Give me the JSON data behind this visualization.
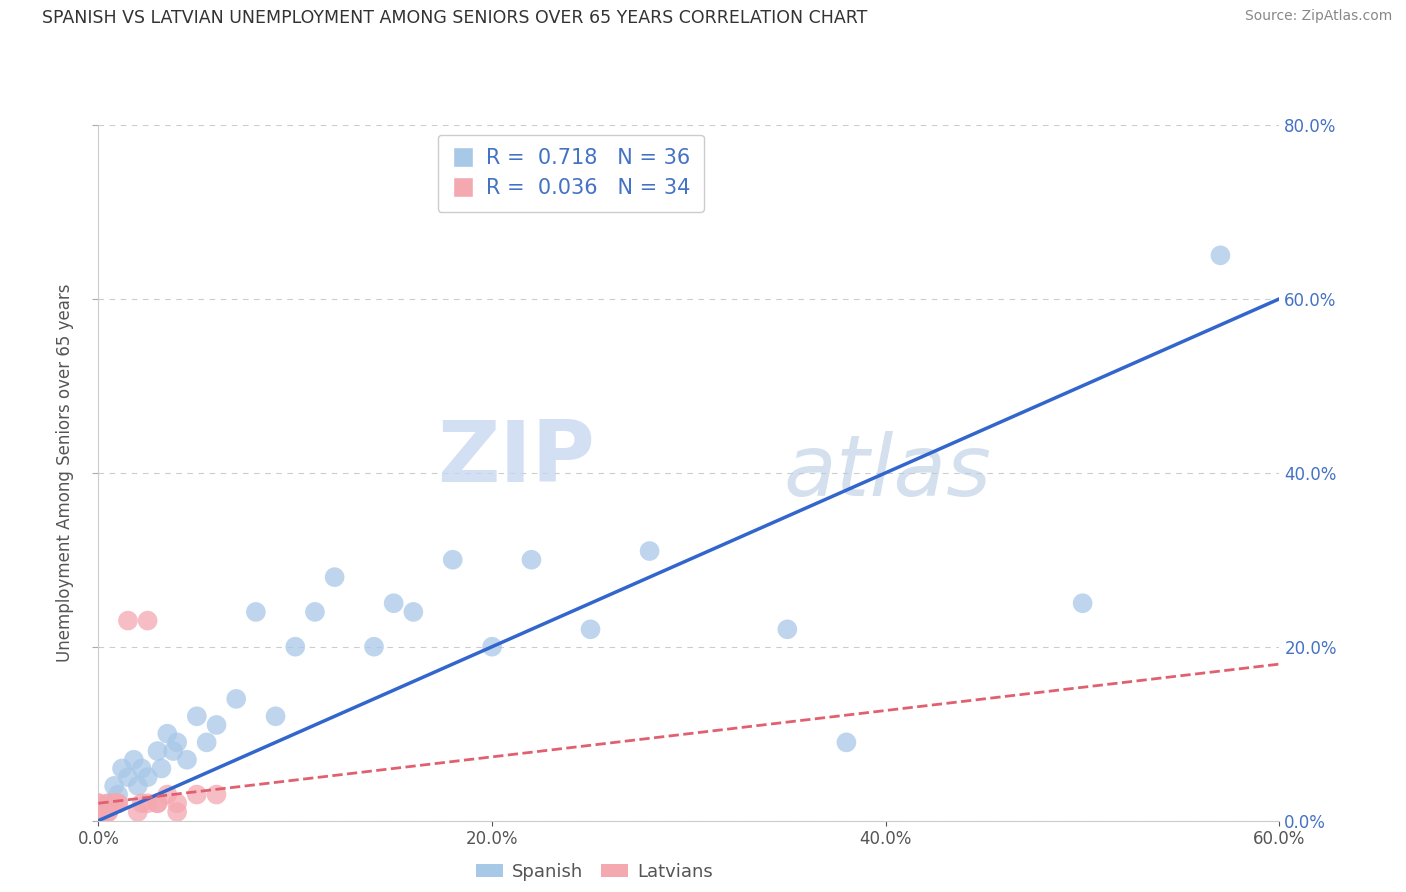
{
  "title": "SPANISH VS LATVIAN UNEMPLOYMENT AMONG SENIORS OVER 65 YEARS CORRELATION CHART",
  "source": "Source: ZipAtlas.com",
  "ylabel": "Unemployment Among Seniors over 65 years",
  "xlim": [
    0.0,
    0.6
  ],
  "ylim": [
    0.0,
    0.8
  ],
  "xtick_vals": [
    0.0,
    0.2,
    0.4,
    0.6
  ],
  "ytick_vals": [
    0.0,
    0.2,
    0.4,
    0.6,
    0.8
  ],
  "spanish_R": 0.718,
  "spanish_N": 36,
  "latvian_R": 0.036,
  "latvian_N": 34,
  "spanish_color": "#a8c8e8",
  "latvian_color": "#f4a8b0",
  "spanish_line_color": "#3366cc",
  "latvian_line_color": "#e06070",
  "background_color": "#ffffff",
  "watermark_zip": "ZIP",
  "watermark_atlas": "atlas",
  "spanish_x": [
    0.005,
    0.008,
    0.01,
    0.012,
    0.015,
    0.018,
    0.02,
    0.022,
    0.025,
    0.03,
    0.032,
    0.035,
    0.038,
    0.04,
    0.045,
    0.05,
    0.055,
    0.06,
    0.07,
    0.08,
    0.09,
    0.1,
    0.11,
    0.12,
    0.14,
    0.15,
    0.16,
    0.18,
    0.2,
    0.22,
    0.25,
    0.28,
    0.35,
    0.38,
    0.5,
    0.57
  ],
  "spanish_y": [
    0.02,
    0.04,
    0.03,
    0.06,
    0.05,
    0.07,
    0.04,
    0.06,
    0.05,
    0.08,
    0.06,
    0.1,
    0.08,
    0.09,
    0.07,
    0.12,
    0.09,
    0.11,
    0.14,
    0.24,
    0.12,
    0.2,
    0.24,
    0.28,
    0.2,
    0.25,
    0.24,
    0.3,
    0.2,
    0.3,
    0.22,
    0.31,
    0.22,
    0.09,
    0.25,
    0.65
  ],
  "latvian_x": [
    0.0,
    0.0,
    0.0,
    0.0,
    0.0,
    0.0,
    0.0,
    0.0,
    0.0,
    0.0,
    0.0,
    0.0,
    0.0,
    0.0,
    0.0,
    0.005,
    0.005,
    0.005,
    0.008,
    0.008,
    0.01,
    0.01,
    0.015,
    0.02,
    0.022,
    0.025,
    0.025,
    0.03,
    0.03,
    0.035,
    0.04,
    0.04,
    0.05,
    0.06
  ],
  "latvian_y": [
    0.0,
    0.0,
    0.0,
    0.0,
    0.0,
    0.0,
    0.0,
    0.0,
    0.01,
    0.01,
    0.01,
    0.01,
    0.01,
    0.02,
    0.02,
    0.01,
    0.01,
    0.02,
    0.02,
    0.02,
    0.02,
    0.02,
    0.23,
    0.01,
    0.02,
    0.02,
    0.23,
    0.02,
    0.02,
    0.03,
    0.01,
    0.02,
    0.03,
    0.03
  ],
  "spanish_line_x": [
    0.0,
    0.6
  ],
  "spanish_line_y": [
    0.0,
    0.6
  ],
  "latvian_line_x": [
    0.0,
    0.6
  ],
  "latvian_line_y": [
    0.02,
    0.18
  ]
}
